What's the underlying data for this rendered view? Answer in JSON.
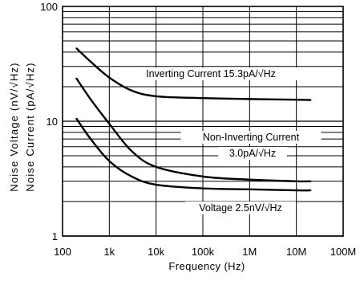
{
  "chart_data": {
    "type": "line",
    "xlabel": "Frequency (Hz)",
    "ylabel_lines": [
      "Noise Voltage (nV/√Hz)",
      "Noise Current (pA/√Hz)"
    ],
    "x_scale": "log",
    "y_scale": "log",
    "xlim": [
      100,
      100000000
    ],
    "ylim": [
      1,
      100
    ],
    "grid": true,
    "x_tick_labels": [
      "100",
      "1k",
      "10k",
      "100k",
      "1M",
      "10M",
      "100M"
    ],
    "y_tick_labels": [
      "1",
      "10",
      "100"
    ],
    "series": [
      {
        "name": "Inverting Current 15.3pA/√Hz",
        "x": [
          200,
          400,
          1000,
          3000,
          10000,
          100000,
          1000000,
          10000000,
          20000000
        ],
        "y": [
          43,
          33,
          24,
          18.5,
          16.5,
          15.9,
          15.6,
          15.4,
          15.3
        ]
      },
      {
        "name": "Non-Inverting Current 3.0pA/√Hz",
        "x": [
          200,
          400,
          1000,
          3000,
          10000,
          100000,
          1000000,
          10000000,
          20000000
        ],
        "y": [
          23.5,
          15.5,
          9.5,
          5.5,
          4.0,
          3.3,
          3.1,
          3.0,
          3.0
        ]
      },
      {
        "name": "Voltage 2.5nV/√Hz",
        "x": [
          200,
          400,
          1000,
          3000,
          10000,
          100000,
          1000000,
          10000000,
          20000000
        ],
        "y": [
          10.5,
          7.0,
          4.5,
          3.3,
          2.8,
          2.6,
          2.55,
          2.5,
          2.5
        ]
      }
    ],
    "annotations": [
      {
        "text": "Inverting  Current  15.3pA/√Hz"
      },
      {
        "text": "Non-Inverting  Current"
      },
      {
        "text": "3.0pA/√Hz"
      },
      {
        "text": "Voltage  2.5nV/√Hz"
      }
    ]
  }
}
